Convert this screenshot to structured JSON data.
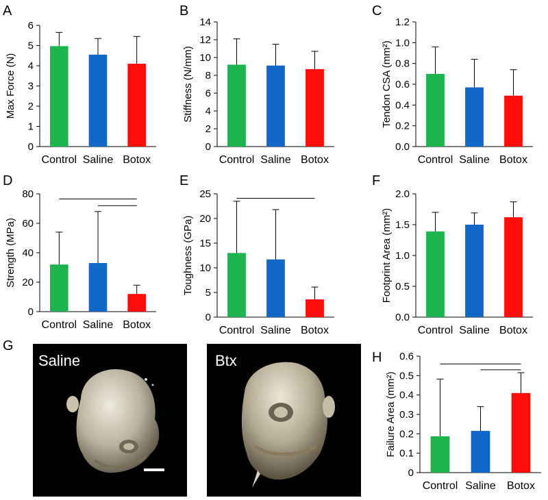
{
  "colors": {
    "Control": "#1db34f",
    "Saline": "#1168c6",
    "Botox": "#ff0d0d"
  },
  "chart_data": [
    {
      "id": "A",
      "type": "bar",
      "letter": "A",
      "ylabel": "Max Force (N)",
      "categories": [
        "Control",
        "Saline",
        "Botox"
      ],
      "values": [
        4.97,
        4.55,
        4.1
      ],
      "errors": [
        0.68,
        0.8,
        1.35
      ],
      "ylim": [
        0,
        6
      ],
      "yticks": [
        "0",
        "1",
        "2",
        "3",
        "4",
        "5",
        "6"
      ],
      "brackets": []
    },
    {
      "id": "B",
      "type": "bar",
      "letter": "B",
      "ylabel": "Stiffness (N/mm)",
      "categories": [
        "Control",
        "Saline",
        "Botox"
      ],
      "values": [
        9.2,
        9.1,
        8.7
      ],
      "errors": [
        2.9,
        2.4,
        2.0
      ],
      "ylim": [
        0,
        14
      ],
      "yticks": [
        "0",
        "2",
        "4",
        "6",
        "8",
        "10",
        "12",
        "14"
      ],
      "brackets": []
    },
    {
      "id": "C",
      "type": "bar",
      "letter": "C",
      "ylabel": "Tendon CSA (mm²)",
      "categories": [
        "Control",
        "Saline",
        "Botox"
      ],
      "values": [
        0.7,
        0.57,
        0.49
      ],
      "errors": [
        0.26,
        0.27,
        0.25
      ],
      "ylim": [
        0,
        1.2
      ],
      "yticks": [
        "0.0",
        "0.2",
        "0.4",
        "0.6",
        "0.8",
        "1.0",
        "1.2"
      ],
      "brackets": []
    },
    {
      "id": "D",
      "type": "bar",
      "letter": "D",
      "ylabel": "Strength (MPa)",
      "categories": [
        "Control",
        "Saline",
        "Botox"
      ],
      "values": [
        32,
        33,
        12
      ],
      "errors": [
        22,
        35,
        6
      ],
      "ylim": [
        0,
        80
      ],
      "yticks": [
        "0",
        "20",
        "40",
        "60",
        "80"
      ],
      "brackets": [
        {
          "from": 0,
          "to": 2,
          "y": 76.5
        },
        {
          "from": 1,
          "to": 2,
          "y": 72
        }
      ]
    },
    {
      "id": "E",
      "type": "bar",
      "letter": "E",
      "ylabel": "Toughness (GPa)",
      "categories": [
        "Control",
        "Saline",
        "Botox"
      ],
      "values": [
        13,
        11.7,
        3.6
      ],
      "errors": [
        10.5,
        10.1,
        2.5
      ],
      "ylim": [
        0,
        25
      ],
      "yticks": [
        "0",
        "5",
        "10",
        "15",
        "20",
        "25"
      ],
      "brackets": [
        {
          "from": 0,
          "to": 2,
          "y": 24.1
        }
      ]
    },
    {
      "id": "F",
      "type": "bar",
      "letter": "F",
      "ylabel": "Footprint Area (mm²)",
      "categories": [
        "Control",
        "Saline",
        "Botox"
      ],
      "values": [
        1.39,
        1.5,
        1.62
      ],
      "errors": [
        0.31,
        0.19,
        0.25
      ],
      "ylim": [
        0,
        2.0
      ],
      "yticks": [
        "0.0",
        "0.5",
        "1.0",
        "1.5",
        "2.0"
      ],
      "brackets": []
    },
    {
      "id": "H",
      "type": "bar",
      "letter": "H",
      "ylabel": "Failure Area (mm²)",
      "categories": [
        "Control",
        "Saline",
        "Botox"
      ],
      "values": [
        0.187,
        0.215,
        0.41
      ],
      "errors": [
        0.295,
        0.125,
        0.105
      ],
      "ylim": [
        0,
        0.6
      ],
      "yticks": [
        "0",
        "0.1",
        "0.2",
        "0.3",
        "0.4",
        "0.5",
        "0.6"
      ],
      "brackets": [
        {
          "from": 0,
          "to": 2,
          "y": 0.56
        },
        {
          "from": 1,
          "to": 2,
          "y": 0.53
        }
      ]
    }
  ],
  "panel_g": {
    "letter": "G",
    "left_label": "Saline",
    "right_label": "Btx"
  }
}
